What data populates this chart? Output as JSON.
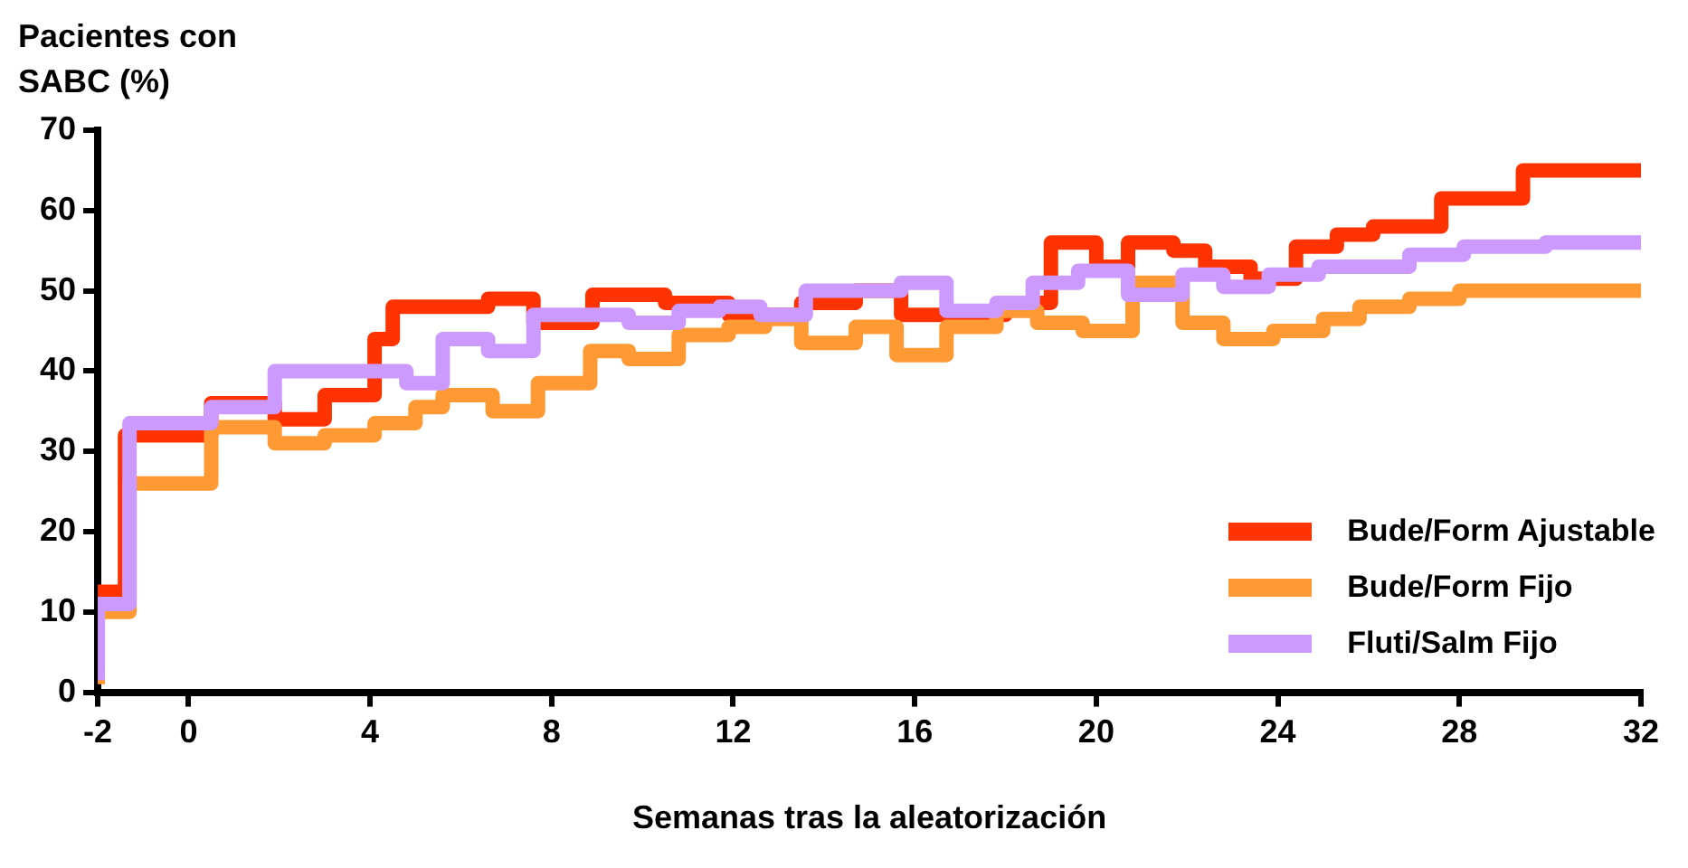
{
  "chart_data": {
    "type": "step",
    "xlabel": "Semanas tras la aleatorización",
    "ylabel": "Pacientes con SABC (%)",
    "xlim": [
      -2,
      32
    ],
    "xticks": [
      -2,
      0,
      4,
      8,
      12,
      16,
      20,
      24,
      28,
      32
    ],
    "ylim": [
      0,
      70
    ],
    "yticks": [
      0,
      10,
      20,
      30,
      40,
      50,
      60,
      70
    ],
    "grid": false,
    "legend": "right",
    "marker": "none",
    "line_style": "solid",
    "series": [
      {
        "name": "Bude/Form Ajustable",
        "color": "#ff3300",
        "x": [
          -2,
          -1.4,
          0.5,
          1.9,
          3,
          4.1,
          4.5,
          6.6,
          7.6,
          8.9,
          10.5,
          11.9,
          13.5,
          14.7,
          15.7,
          18,
          19,
          20,
          20.7,
          21.7,
          22.4,
          23.4,
          24.4,
          25.3,
          26.1,
          27.6,
          29.4,
          30.4,
          32
        ],
        "values": [
          3,
          12.5,
          32,
          36,
          34,
          37,
          44,
          48,
          49,
          46,
          49.5,
          48.5,
          47,
          48.5,
          50,
          47,
          48.5,
          56,
          53,
          56,
          55,
          53,
          51.5,
          55.5,
          57,
          58,
          61.5,
          65,
          65
        ]
      },
      {
        "name": "Bude/Form Fijo",
        "color": "#ff9933",
        "x": [
          -2,
          -1.3,
          0.5,
          1.9,
          3,
          4.1,
          5,
          5.6,
          6.7,
          7.7,
          8.85,
          9.7,
          10.8,
          11.9,
          12.7,
          13.5,
          14.7,
          15.6,
          16.7,
          17.8,
          18.7,
          19.7,
          20.8,
          21.9,
          22.8,
          23.9,
          25,
          25.8,
          26.9,
          28,
          29,
          32
        ],
        "values": [
          1,
          10,
          26,
          33,
          31,
          32,
          33.5,
          35.5,
          37,
          35,
          38.5,
          42.5,
          41.5,
          44.5,
          45.5,
          46.5,
          43.5,
          45.5,
          42,
          45.5,
          47.5,
          46,
          45,
          51,
          46,
          44,
          45,
          46.5,
          48,
          49,
          50,
          50
        ]
      },
      {
        "name": "Fluti/Salm Fijo",
        "color": "#cc99ff",
        "x": [
          -2,
          -1.3,
          0.5,
          1.9,
          4.8,
          5.6,
          6.6,
          7.6,
          9.7,
          10.8,
          11.7,
          12.6,
          13.6,
          15.7,
          16.7,
          17.8,
          18.6,
          19.6,
          20.7,
          21.9,
          22.8,
          23.8,
          24.9,
          26.9,
          28.1,
          29.9,
          31,
          32
        ],
        "values": [
          1.5,
          11,
          33.5,
          35.5,
          40,
          38.5,
          44,
          42.5,
          47,
          46,
          47.5,
          48,
          47,
          50,
          51,
          47.5,
          48.5,
          51,
          52.5,
          49.5,
          52,
          50.5,
          52,
          53,
          54.5,
          55.5,
          56,
          56
        ]
      }
    ]
  }
}
